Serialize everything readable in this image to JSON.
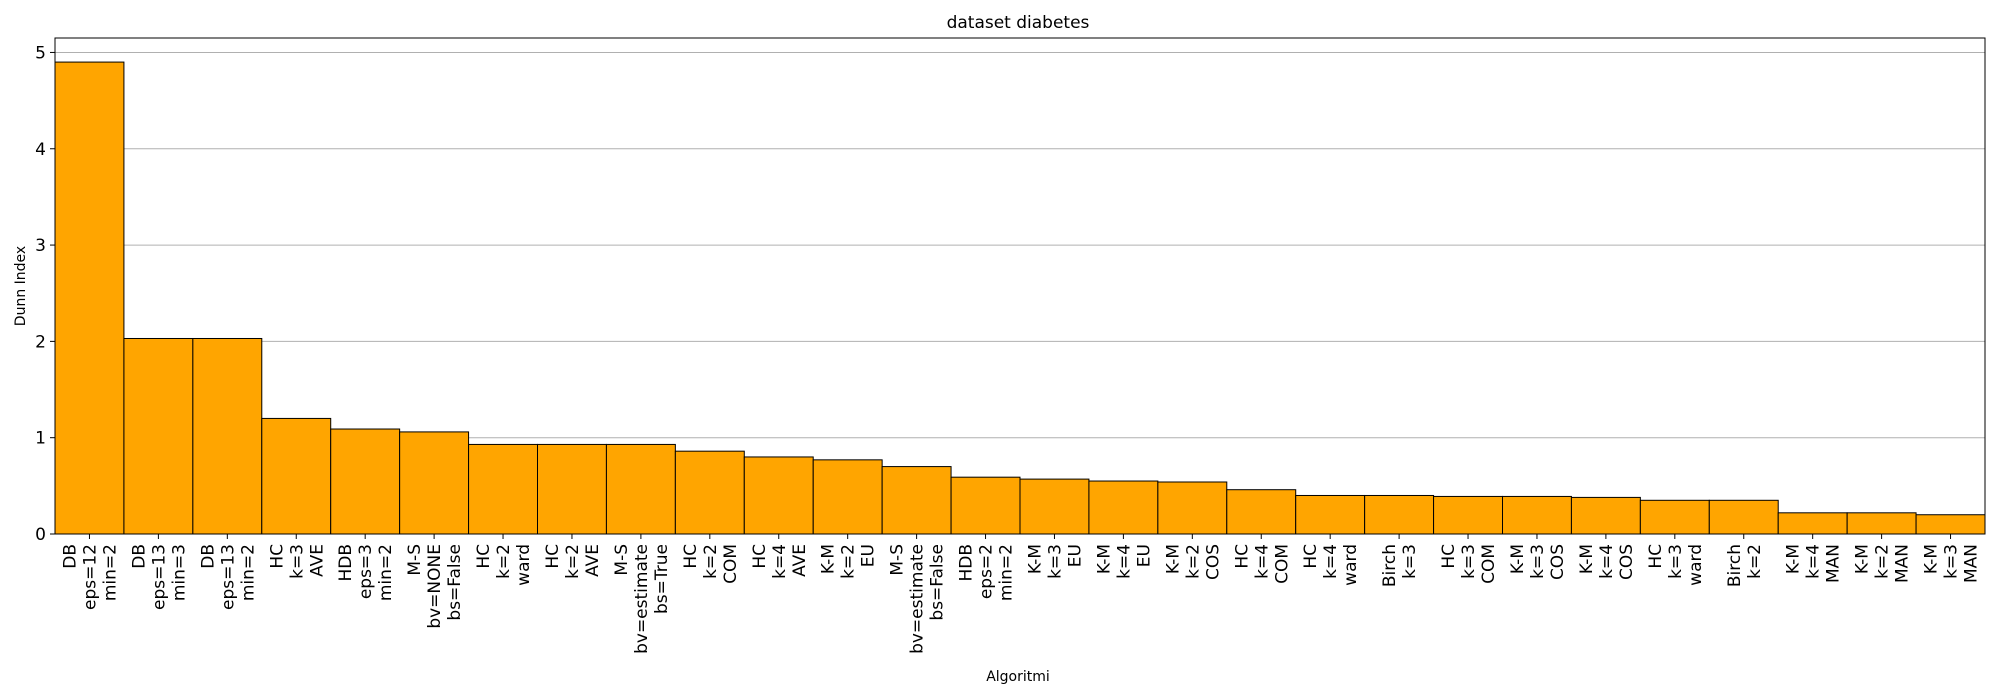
{
  "chart_data": {
    "type": "bar",
    "title": "dataset diabetes",
    "xlabel": "Algoritmi",
    "ylabel": "Dunn Index",
    "ylim": [
      0,
      5.15
    ],
    "yticks": [
      "0",
      "1",
      "2",
      "3",
      "4",
      "5"
    ],
    "grid": "y",
    "bar_color": "#FFA500",
    "categories": [
      [
        "DB",
        "eps=12",
        "min=2"
      ],
      [
        "DB",
        "eps=13",
        "min=3"
      ],
      [
        "DB",
        "eps=13",
        "min=2"
      ],
      [
        "HC",
        "k=3",
        "AVE"
      ],
      [
        "HDB",
        "eps=3",
        "min=2"
      ],
      [
        "M-S",
        "bv=NONE",
        "bs=False"
      ],
      [
        "HC",
        "k=2",
        "ward"
      ],
      [
        "HC",
        "k=2",
        "AVE"
      ],
      [
        "M-S",
        "bv=estimate",
        "bs=True"
      ],
      [
        "HC",
        "k=2",
        "COM"
      ],
      [
        "HC",
        "k=4",
        "AVE"
      ],
      [
        "K-M",
        "k=2",
        "EU"
      ],
      [
        "M-S",
        "bv=estimate",
        "bs=False"
      ],
      [
        "HDB",
        "eps=2",
        "min=2"
      ],
      [
        "K-M",
        "k=3",
        "EU"
      ],
      [
        "K-M",
        "k=4",
        "EU"
      ],
      [
        "K-M",
        "k=2",
        "COS"
      ],
      [
        "HC",
        "k=4",
        "COM"
      ],
      [
        "HC",
        "k=4",
        "ward"
      ],
      [
        "Birch",
        "k=3"
      ],
      [
        "HC",
        "k=3",
        "COM"
      ],
      [
        "K-M",
        "k=3",
        "COS"
      ],
      [
        "K-M",
        "k=4",
        "COS"
      ],
      [
        "HC",
        "k=3",
        "ward"
      ],
      [
        "Birch",
        "k=2"
      ],
      [
        "K-M",
        "k=4",
        "MAN"
      ],
      [
        "K-M",
        "k=2",
        "MAN"
      ],
      [
        "K-M",
        "k=3",
        "MAN"
      ]
    ],
    "values": [
      4.9,
      2.03,
      2.03,
      1.2,
      1.09,
      1.06,
      0.93,
      0.93,
      0.93,
      0.86,
      0.8,
      0.77,
      0.7,
      0.59,
      0.57,
      0.55,
      0.54,
      0.46,
      0.4,
      0.4,
      0.39,
      0.39,
      0.38,
      0.35,
      0.35,
      0.22,
      0.22,
      0.2
    ]
  }
}
